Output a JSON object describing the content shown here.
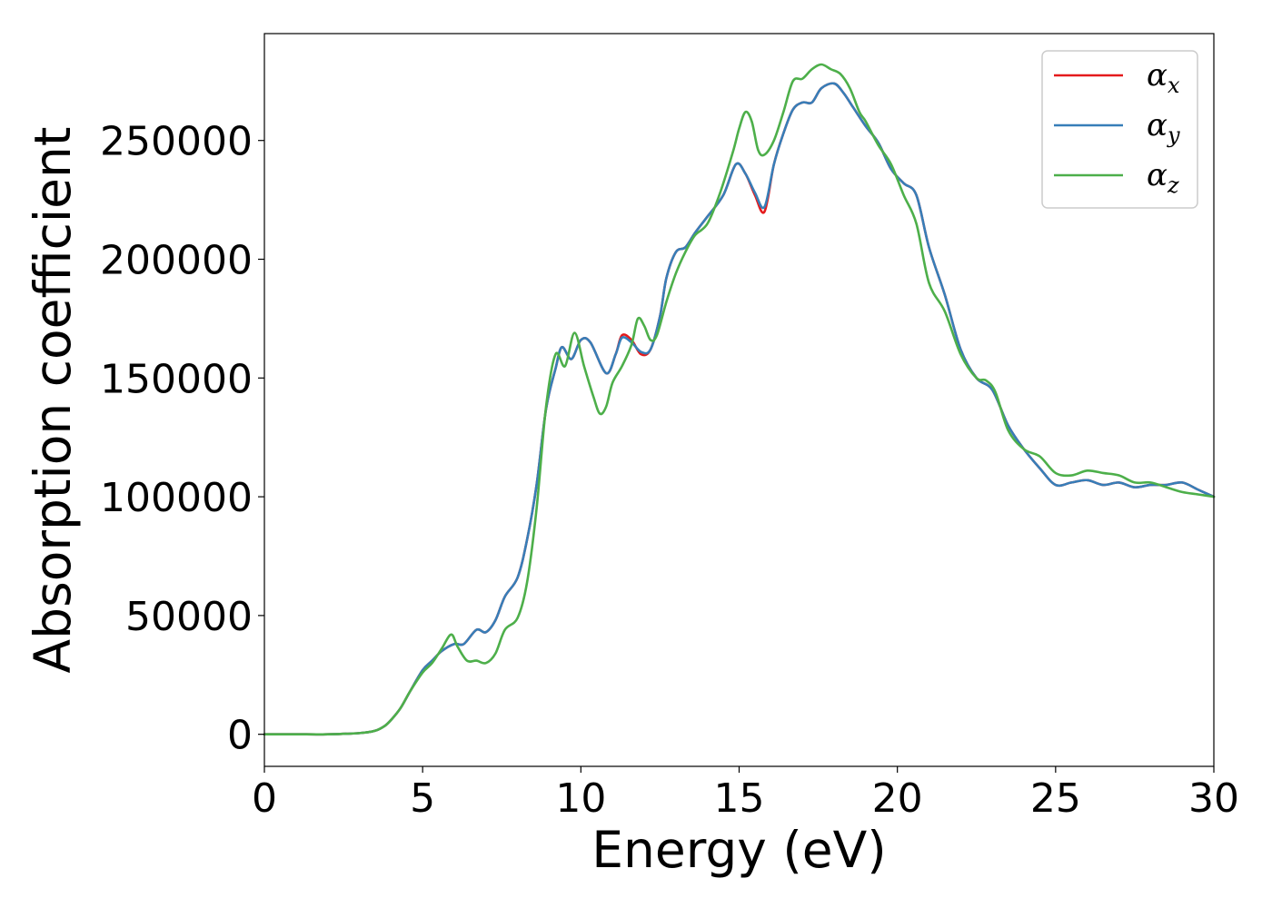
{
  "chart_data": {
    "type": "line",
    "title": "",
    "xlabel": "Energy (eV)",
    "ylabel": "Absorption coefficient",
    "xlim": [
      0,
      30
    ],
    "ylim": [
      -13500,
      295000
    ],
    "xticks": [
      0,
      5,
      10,
      15,
      20,
      25,
      30
    ],
    "xtick_labels": [
      "0",
      "5",
      "10",
      "15",
      "20",
      "25",
      "30"
    ],
    "yticks": [
      0,
      50000,
      100000,
      150000,
      200000,
      250000
    ],
    "ytick_labels": [
      "0",
      "50000",
      "100000",
      "150000",
      "200000",
      "250000"
    ],
    "grid": false,
    "legend_position": "top-right",
    "series": [
      {
        "name": "α_x",
        "symbol": "α",
        "subscript": "x",
        "color": "#e41a1c",
        "x": [
          0,
          1,
          2,
          3,
          3.5,
          3.8,
          4.0,
          4.3,
          4.6,
          5.0,
          5.3,
          5.6,
          6.0,
          6.3,
          6.7,
          7.0,
          7.3,
          7.6,
          8.0,
          8.3,
          8.6,
          8.9,
          9.2,
          9.4,
          9.7,
          10.0,
          10.3,
          10.8,
          11.1,
          11.3,
          11.6,
          11.9,
          12.2,
          12.5,
          12.7,
          13.0,
          13.3,
          13.6,
          14.0,
          14.5,
          14.9,
          15.2,
          15.5,
          15.8,
          16.1,
          16.4,
          16.7,
          17.0,
          17.3,
          17.6,
          18.0,
          18.3,
          18.6,
          19.0,
          19.4,
          19.8,
          20.2,
          20.6,
          21.0,
          21.5,
          22.0,
          22.5,
          23.0,
          23.5,
          24.0,
          24.5,
          25.0,
          25.5,
          26.0,
          26.5,
          27.0,
          27.5,
          28.0,
          28.5,
          29.0,
          29.5,
          30.0
        ],
        "y": [
          0,
          0,
          0,
          500,
          1500,
          3500,
          6000,
          11000,
          18000,
          27000,
          31000,
          35000,
          38000,
          38000,
          44000,
          43000,
          48000,
          58000,
          66000,
          82000,
          105000,
          137000,
          154000,
          163000,
          158000,
          166000,
          165000,
          152000,
          160000,
          168000,
          166000,
          160000,
          162000,
          176000,
          192000,
          203000,
          205000,
          211000,
          218000,
          227000,
          240000,
          236000,
          227000,
          220000,
          240000,
          253000,
          263000,
          266000,
          266000,
          272000,
          274000,
          270000,
          264000,
          256000,
          249000,
          238000,
          232000,
          227000,
          205000,
          185000,
          162000,
          150000,
          145000,
          130000,
          120000,
          112000,
          105000,
          106000,
          107000,
          105000,
          106000,
          104000,
          105000,
          105000,
          106000,
          103000,
          100000
        ]
      },
      {
        "name": "α_y",
        "symbol": "α",
        "subscript": "y",
        "color": "#377eb8",
        "x": [
          0,
          1,
          2,
          3,
          3.5,
          3.8,
          4.0,
          4.3,
          4.6,
          5.0,
          5.3,
          5.6,
          6.0,
          6.3,
          6.7,
          7.0,
          7.3,
          7.6,
          8.0,
          8.3,
          8.6,
          8.9,
          9.2,
          9.4,
          9.7,
          10.0,
          10.3,
          10.8,
          11.1,
          11.3,
          11.6,
          11.9,
          12.2,
          12.5,
          12.7,
          13.0,
          13.3,
          13.6,
          14.0,
          14.5,
          14.9,
          15.2,
          15.5,
          15.8,
          16.1,
          16.4,
          16.7,
          17.0,
          17.3,
          17.6,
          18.0,
          18.3,
          18.6,
          19.0,
          19.4,
          19.8,
          20.2,
          20.6,
          21.0,
          21.5,
          22.0,
          22.5,
          23.0,
          23.5,
          24.0,
          24.5,
          25.0,
          25.5,
          26.0,
          26.5,
          27.0,
          27.5,
          28.0,
          28.5,
          29.0,
          29.5,
          30.0
        ],
        "y": [
          0,
          0,
          0,
          500,
          1500,
          3500,
          6000,
          11000,
          18000,
          27000,
          31000,
          35000,
          38000,
          38000,
          44000,
          43000,
          48000,
          58000,
          66000,
          82000,
          105000,
          137000,
          154000,
          163000,
          158000,
          166000,
          165000,
          152000,
          160000,
          167000,
          165000,
          161000,
          162000,
          176000,
          192000,
          203000,
          205000,
          211000,
          218000,
          227000,
          240000,
          236000,
          228000,
          222000,
          240000,
          253000,
          263000,
          266000,
          266000,
          272000,
          274000,
          270000,
          264000,
          256000,
          249000,
          238000,
          232000,
          227000,
          205000,
          185000,
          162000,
          150000,
          145000,
          130000,
          120000,
          112000,
          105000,
          106000,
          107000,
          105000,
          106000,
          104000,
          105000,
          105000,
          106000,
          103000,
          100000
        ]
      },
      {
        "name": "α_z",
        "symbol": "α",
        "subscript": "z",
        "color": "#4daf4a",
        "x": [
          0,
          1,
          2,
          3,
          3.5,
          3.8,
          4.0,
          4.3,
          4.6,
          5.0,
          5.3,
          5.6,
          5.9,
          6.1,
          6.4,
          6.7,
          7.0,
          7.3,
          7.6,
          8.0,
          8.3,
          8.6,
          8.9,
          9.2,
          9.5,
          9.8,
          10.1,
          10.4,
          10.6,
          10.8,
          11.0,
          11.3,
          11.6,
          11.8,
          12.0,
          12.2,
          12.4,
          12.7,
          13.0,
          13.3,
          13.6,
          14.0,
          14.4,
          14.8,
          15.0,
          15.2,
          15.4,
          15.6,
          15.8,
          16.1,
          16.4,
          16.7,
          17.0,
          17.3,
          17.6,
          17.9,
          18.2,
          18.5,
          18.8,
          19.0,
          19.4,
          19.8,
          20.2,
          20.6,
          21.0,
          21.5,
          22.0,
          22.5,
          22.8,
          23.1,
          23.5,
          24.0,
          24.5,
          25.0,
          25.5,
          26.0,
          26.5,
          27.0,
          27.5,
          28.0,
          28.5,
          29.0,
          29.5,
          30.0
        ],
        "y": [
          0,
          0,
          0,
          500,
          1500,
          3500,
          6000,
          11000,
          18000,
          26000,
          30000,
          36000,
          42000,
          37000,
          31000,
          31000,
          30000,
          34000,
          44000,
          49000,
          64000,
          95000,
          138000,
          160000,
          155000,
          169000,
          155000,
          142000,
          135000,
          138000,
          148000,
          155000,
          164000,
          175000,
          172000,
          166000,
          168000,
          182000,
          194000,
          203000,
          210000,
          215000,
          228000,
          245000,
          255000,
          262000,
          258000,
          246000,
          244000,
          250000,
          262000,
          275000,
          276000,
          280000,
          282000,
          280000,
          278000,
          272000,
          262000,
          258000,
          248000,
          240000,
          227000,
          215000,
          190000,
          178000,
          160000,
          150000,
          149000,
          144000,
          128000,
          120000,
          117000,
          110000,
          109000,
          111000,
          110000,
          109000,
          106000,
          106000,
          104000,
          102000,
          101000,
          100000
        ]
      }
    ]
  }
}
